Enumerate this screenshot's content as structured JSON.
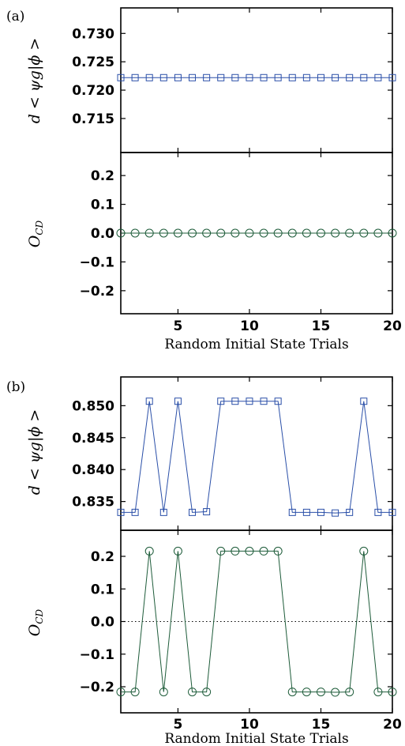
{
  "chart_data": [
    {
      "type": "line",
      "panel_label": "(a)",
      "xlabel": "Random Initial State Trials",
      "xlim": [
        1,
        20
      ],
      "xticks": [
        5,
        10,
        15,
        20
      ],
      "subplots": [
        {
          "ylabel": "d < ψg|ϕ >",
          "ylim": [
            0.709,
            0.7345
          ],
          "yticks": [
            0.715,
            0.72,
            0.725,
            0.73
          ],
          "ytick_labels": [
            "0.715",
            "0.720",
            "0.725",
            "0.730"
          ],
          "grid": false,
          "zero_line": false,
          "series": [
            {
              "marker": "square",
              "color": "#2a4fa8",
              "x": [
                1,
                2,
                3,
                4,
                5,
                6,
                7,
                8,
                9,
                10,
                11,
                12,
                13,
                14,
                15,
                16,
                17,
                18,
                19,
                20
              ],
              "values": [
                0.7222,
                0.7222,
                0.7222,
                0.7222,
                0.7222,
                0.7222,
                0.7222,
                0.7222,
                0.7222,
                0.7222,
                0.7222,
                0.7222,
                0.7222,
                0.7222,
                0.7222,
                0.7222,
                0.7222,
                0.7222,
                0.7222,
                0.7222
              ]
            }
          ]
        },
        {
          "ylabel": "O_CD",
          "ylim": [
            -0.28,
            0.28
          ],
          "yticks": [
            -0.2,
            -0.1,
            0,
            0.1,
            0.2
          ],
          "ytick_labels": [
            "−0.2",
            "−0.1",
            "0.0",
            "0.1",
            "0.2"
          ],
          "grid": false,
          "zero_line": false,
          "series": [
            {
              "marker": "circle",
              "color": "#1e5c3a",
              "x": [
                1,
                2,
                3,
                4,
                5,
                6,
                7,
                8,
                9,
                10,
                11,
                12,
                13,
                14,
                15,
                16,
                17,
                18,
                19,
                20
              ],
              "values": [
                0,
                0,
                0,
                0,
                0,
                0,
                0,
                0,
                0,
                0,
                0,
                0,
                0,
                0,
                0,
                0,
                0,
                0,
                0,
                0
              ]
            }
          ]
        }
      ]
    },
    {
      "type": "line",
      "panel_label": "(b)",
      "xlabel": "Random Initial State Trials",
      "xlim": [
        1,
        20
      ],
      "xticks": [
        5,
        10,
        15,
        20
      ],
      "subplots": [
        {
          "ylabel": "d < ψg|ϕ >",
          "ylim": [
            0.8305,
            0.8545
          ],
          "yticks": [
            0.835,
            0.84,
            0.845,
            0.85
          ],
          "ytick_labels": [
            "0.835",
            "0.840",
            "0.845",
            "0.850"
          ],
          "grid": false,
          "zero_line": false,
          "series": [
            {
              "marker": "square",
              "color": "#2a4fa8",
              "x": [
                1,
                2,
                3,
                4,
                5,
                6,
                7,
                8,
                9,
                10,
                11,
                12,
                13,
                14,
                15,
                16,
                17,
                18,
                19,
                20
              ],
              "values": [
                0.8333,
                0.8333,
                0.8507,
                0.8333,
                0.8507,
                0.8333,
                0.8334,
                0.8507,
                0.8507,
                0.8507,
                0.8507,
                0.8507,
                0.8333,
                0.8333,
                0.8333,
                0.8332,
                0.8333,
                0.8507,
                0.8333,
                0.8333
              ]
            }
          ]
        },
        {
          "ylabel": "O_CD",
          "ylim": [
            -0.28,
            0.28
          ],
          "yticks": [
            -0.2,
            -0.1,
            0,
            0.1,
            0.2
          ],
          "ytick_labels": [
            "−0.2",
            "−0.1",
            "0.0",
            "0.1",
            "0.2"
          ],
          "grid": false,
          "zero_line": true,
          "series": [
            {
              "marker": "circle",
              "color": "#1e5c3a",
              "x": [
                1,
                2,
                3,
                4,
                5,
                6,
                7,
                8,
                9,
                10,
                11,
                12,
                13,
                14,
                15,
                16,
                17,
                18,
                19,
                20
              ],
              "values": [
                -0.216,
                -0.216,
                0.216,
                -0.216,
                0.216,
                -0.216,
                -0.216,
                0.216,
                0.216,
                0.216,
                0.216,
                0.216,
                -0.216,
                -0.216,
                -0.216,
                -0.217,
                -0.216,
                0.216,
                -0.216,
                -0.216
              ]
            }
          ]
        }
      ]
    }
  ]
}
